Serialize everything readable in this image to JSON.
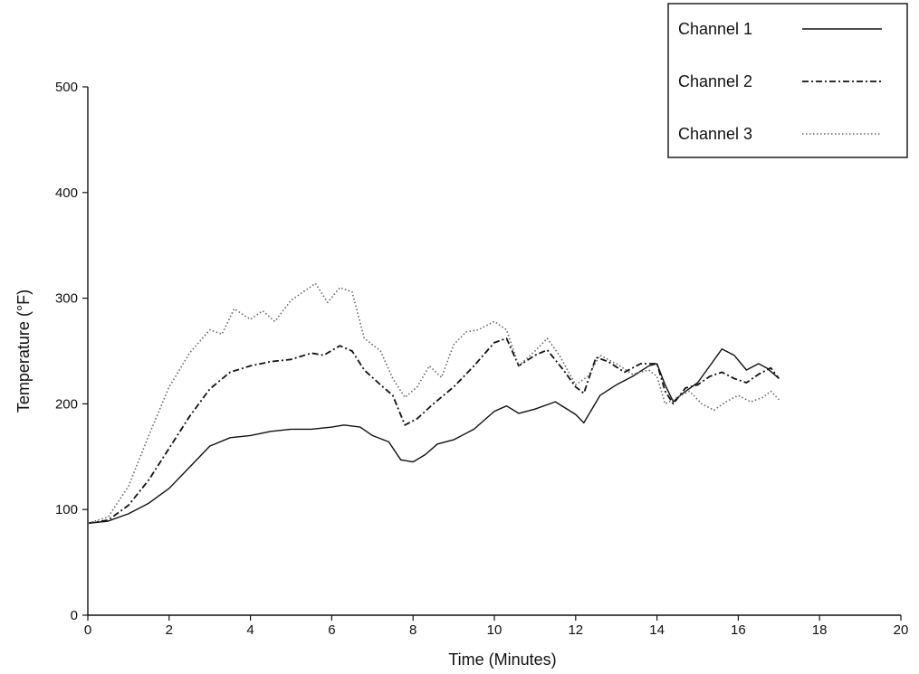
{
  "chart_data": {
    "type": "line",
    "title": "",
    "xlabel": "Time (Minutes)",
    "ylabel": "Temperature (°F)",
    "xlim": [
      0,
      20
    ],
    "ylim": [
      0,
      500
    ],
    "xticks": [
      0,
      2,
      4,
      6,
      8,
      10,
      12,
      14,
      16,
      18,
      20
    ],
    "yticks": [
      0,
      100,
      200,
      300,
      400,
      500
    ],
    "grid": false,
    "legend": "top-right",
    "series": [
      {
        "name": "Channel 1",
        "style": "solid",
        "color": "#111111",
        "x": [
          0,
          0.5,
          1,
          1.5,
          2,
          2.5,
          3,
          3.5,
          4,
          4.5,
          5,
          5.5,
          6,
          6.3,
          6.7,
          7,
          7.4,
          7.7,
          8,
          8.3,
          8.6,
          9,
          9.5,
          10,
          10.3,
          10.6,
          11,
          11.5,
          12,
          12.2,
          12.6,
          13,
          13.4,
          13.8,
          14,
          14.2,
          14.4,
          14.6,
          15,
          15.3,
          15.6,
          15.9,
          16.2,
          16.5,
          16.7,
          17
        ],
        "y": [
          87,
          89,
          96,
          106,
          120,
          140,
          160,
          168,
          170,
          174,
          176,
          176,
          178,
          180,
          178,
          170,
          164,
          147,
          145,
          152,
          162,
          166,
          176,
          193,
          198,
          191,
          195,
          202,
          190,
          182,
          208,
          218,
          226,
          236,
          238,
          218,
          202,
          209,
          220,
          236,
          252,
          246,
          232,
          238,
          234,
          224
        ]
      },
      {
        "name": "Channel 2",
        "style": "dashdot",
        "color": "#111111",
        "x": [
          0,
          0.5,
          1,
          1.5,
          2,
          2.5,
          3,
          3.5,
          4,
          4.5,
          5,
          5.5,
          5.8,
          6.2,
          6.5,
          6.8,
          7.2,
          7.5,
          7.8,
          8.1,
          8.5,
          9,
          9.5,
          10,
          10.3,
          10.6,
          11,
          11.3,
          11.7,
          12,
          12.2,
          12.5,
          12.8,
          13.2,
          13.6,
          14,
          14.2,
          14.4,
          14.7,
          15,
          15.3,
          15.6,
          15.9,
          16.2,
          16.5,
          16.8,
          17
        ],
        "y": [
          87,
          90,
          104,
          128,
          158,
          188,
          214,
          230,
          236,
          240,
          242,
          248,
          246,
          255,
          250,
          232,
          218,
          208,
          180,
          186,
          200,
          216,
          236,
          258,
          262,
          236,
          246,
          251,
          232,
          216,
          210,
          244,
          240,
          230,
          238,
          238,
          212,
          200,
          215,
          218,
          226,
          230,
          224,
          220,
          228,
          234,
          224
        ]
      },
      {
        "name": "Channel 3",
        "style": "dotted",
        "color": "#666666",
        "x": [
          0,
          0.5,
          1,
          1.5,
          2,
          2.5,
          3,
          3.3,
          3.6,
          4,
          4.3,
          4.6,
          5,
          5.3,
          5.6,
          5.9,
          6.2,
          6.5,
          6.8,
          7.2,
          7.5,
          7.8,
          8.1,
          8.4,
          8.7,
          9,
          9.3,
          9.6,
          10,
          10.3,
          10.6,
          11,
          11.3,
          11.6,
          12,
          12.3,
          12.6,
          13,
          13.4,
          13.8,
          14,
          14.2,
          14.5,
          14.8,
          15.1,
          15.4,
          15.7,
          16,
          16.3,
          16.6,
          16.8,
          17
        ],
        "y": [
          87,
          93,
          122,
          170,
          216,
          248,
          270,
          266,
          290,
          280,
          288,
          278,
          298,
          306,
          314,
          296,
          310,
          306,
          262,
          250,
          224,
          206,
          216,
          236,
          225,
          256,
          268,
          270,
          278,
          270,
          236,
          250,
          262,
          246,
          218,
          226,
          246,
          238,
          228,
          232,
          226,
          200,
          206,
          212,
          200,
          194,
          202,
          208,
          202,
          206,
          212,
          204
        ]
      }
    ]
  }
}
